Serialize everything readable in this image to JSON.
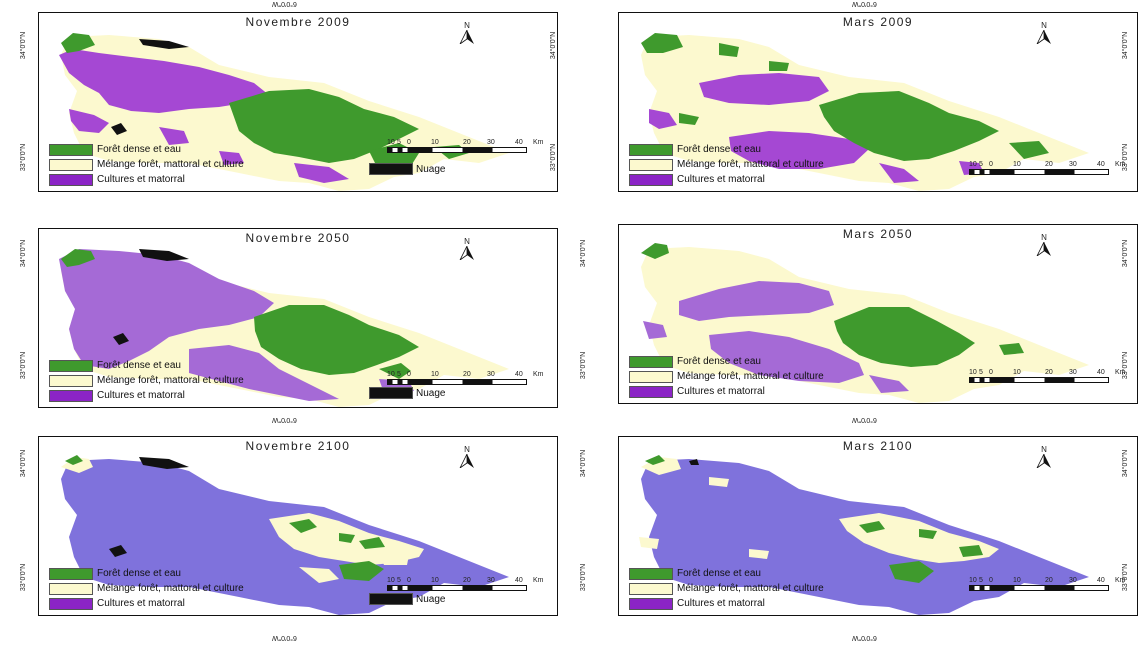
{
  "colors": {
    "forest": "#3f9a2d",
    "mix": "#fcf9cf",
    "crops_legend": "#8b24c6",
    "crops_2009": "#a548d3",
    "crops_2050": "#a56ad6",
    "crops_2100": "#7f72dc",
    "cloud": "#111111"
  },
  "legend": {
    "forest": "Forêt dense et eau",
    "mix": "Mélange forêt, mattoral et culture",
    "crops": "Cultures et matorral",
    "cloud": "Nuage"
  },
  "north_label": "N",
  "scale": {
    "ticks": [
      "10",
      "5",
      "0",
      "10",
      "20",
      "30",
      "40"
    ],
    "unit": "Km"
  },
  "coords": {
    "lat_top": "34°0'0\"N",
    "lat_bottom": "33°0'0\"N",
    "lon": "6°0'0\"W"
  },
  "panels": [
    {
      "title": "Novembre 2009",
      "season": "nov",
      "year": "2009",
      "has_cloud": true
    },
    {
      "title": "Mars 2009",
      "season": "mar",
      "year": "2009",
      "has_cloud": false
    },
    {
      "title": "Novembre 2050",
      "season": "nov",
      "year": "2050",
      "has_cloud": true
    },
    {
      "title": "Mars 2050",
      "season": "mar",
      "year": "2050",
      "has_cloud": false
    },
    {
      "title": "Novembre 2100",
      "season": "nov",
      "year": "2100",
      "has_cloud": true
    },
    {
      "title": "Mars 2100",
      "season": "mar",
      "year": "2100",
      "has_cloud": false
    }
  ]
}
